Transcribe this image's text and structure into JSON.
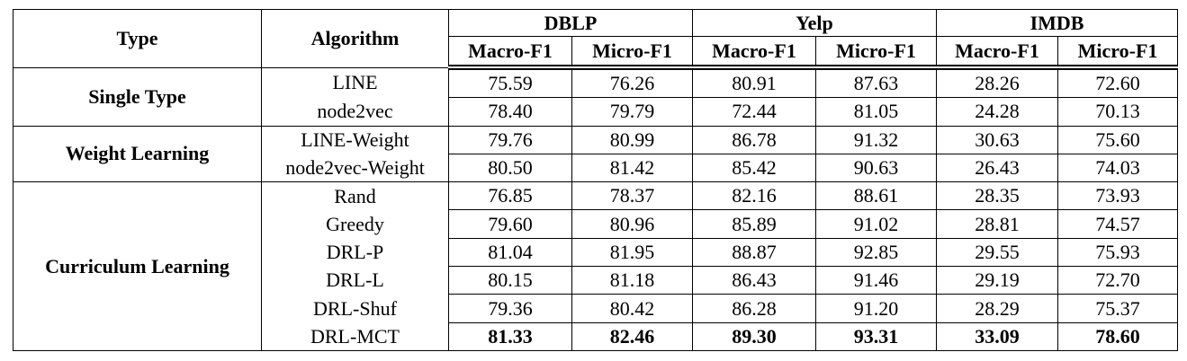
{
  "header": {
    "type": "Type",
    "algorithm": "Algorithm",
    "datasets": [
      "DBLP",
      "Yelp",
      "IMDB"
    ],
    "metrics": [
      "Macro-F1",
      "Micro-F1",
      "Macro-F1",
      "Micro-F1",
      "Macro-F1",
      "Micro-F1"
    ]
  },
  "groups": [
    {
      "type": "Single Type",
      "rows": [
        {
          "algorithm": "LINE",
          "values": [
            "75.59",
            "76.26",
            "80.91",
            "87.63",
            "28.26",
            "72.60"
          ]
        },
        {
          "algorithm": "node2vec",
          "values": [
            "78.40",
            "79.79",
            "72.44",
            "81.05",
            "24.28",
            "70.13"
          ]
        }
      ]
    },
    {
      "type": "Weight Learning",
      "rows": [
        {
          "algorithm": "LINE-Weight",
          "values": [
            "79.76",
            "80.99",
            "86.78",
            "91.32",
            "30.63",
            "75.60"
          ]
        },
        {
          "algorithm": "node2vec-Weight",
          "values": [
            "80.50",
            "81.42",
            "85.42",
            "90.63",
            "26.43",
            "74.03"
          ]
        }
      ]
    },
    {
      "type": "Curriculum Learning",
      "rows": [
        {
          "algorithm": "Rand",
          "values": [
            "76.85",
            "78.37",
            "82.16",
            "88.61",
            "28.35",
            "73.93"
          ]
        },
        {
          "algorithm": "Greedy",
          "values": [
            "79.60",
            "80.96",
            "85.89",
            "91.02",
            "28.81",
            "74.57"
          ]
        },
        {
          "algorithm": "DRL-P",
          "values": [
            "81.04",
            "81.95",
            "88.87",
            "92.85",
            "29.55",
            "75.93"
          ]
        },
        {
          "algorithm": "DRL-L",
          "values": [
            "80.15",
            "81.18",
            "86.43",
            "91.46",
            "29.19",
            "72.70"
          ]
        },
        {
          "algorithm": "DRL-Shuf",
          "values": [
            "79.36",
            "80.42",
            "86.28",
            "91.20",
            "28.29",
            "75.37"
          ]
        },
        {
          "algorithm": "DRL-MCT",
          "values": [
            "81.33",
            "82.46",
            "89.30",
            "93.31",
            "33.09",
            "78.60"
          ],
          "bold": true
        }
      ]
    }
  ]
}
